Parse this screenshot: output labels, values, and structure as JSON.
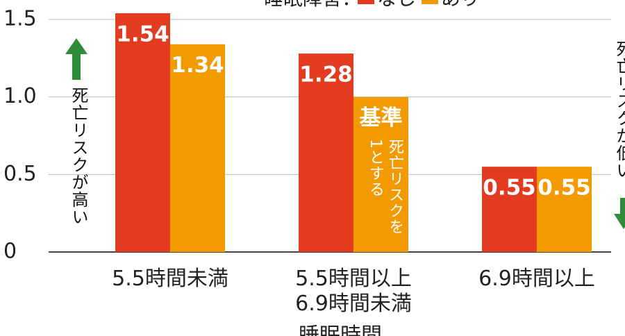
{
  "chart_data": {
    "type": "bar",
    "legend_title": "睡眠障害：",
    "categories": [
      "5.5時間未満",
      "5.5時間以上\n6.9時間未満",
      "6.9時間以上"
    ],
    "series": [
      {
        "name": "なし",
        "color": "#e23b1f",
        "values": [
          1.54,
          1.28,
          0.55
        ]
      },
      {
        "name": "あり",
        "color": "#f29a00",
        "values": [
          1.34,
          1,
          0.55
        ],
        "value_labels": [
          "1.34",
          "基準",
          "0.55"
        ]
      }
    ],
    "ylim": [
      0,
      1.5
    ],
    "yticks": [
      0,
      0.5,
      {
        "value": 1,
        "label": "1.0"
      },
      1.5
    ],
    "grid": true,
    "x_label": "睡眠時間",
    "annotations": {
      "high": "死亡リスクが高い",
      "low": "死亡リスクが低い",
      "base_note_1": "死亡リスクを",
      "base_note_2": "1とする"
    }
  }
}
